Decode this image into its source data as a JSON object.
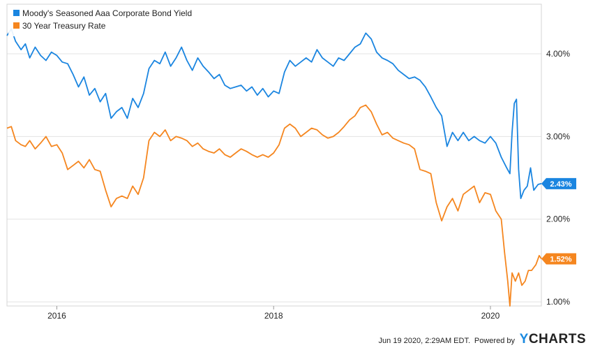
{
  "chart_data": {
    "type": "line",
    "ylim": [
      0.95,
      4.6
    ],
    "y_ticks": [
      1.0,
      2.0,
      3.0,
      4.0
    ],
    "y_tick_labels": [
      "1.00%",
      "2.00%",
      "3.00%",
      "4.00%"
    ],
    "x_range": [
      2015.54,
      2020.47
    ],
    "x_ticks": [
      2016,
      2018,
      2020
    ],
    "x_tick_labels": [
      "2016",
      "2018",
      "2020"
    ],
    "grid": "horizontal",
    "legend_position": "top-left",
    "series": [
      {
        "name": "Moody's Seasoned Aaa Corporate Bond Yield",
        "color": "#1a85e0",
        "last_label": "2.43%",
        "last_value": 2.43,
        "points": [
          [
            2015.54,
            4.22
          ],
          [
            2015.58,
            4.3
          ],
          [
            2015.62,
            4.15
          ],
          [
            2015.67,
            4.05
          ],
          [
            2015.71,
            4.12
          ],
          [
            2015.75,
            3.95
          ],
          [
            2015.8,
            4.08
          ],
          [
            2015.85,
            3.98
          ],
          [
            2015.9,
            3.92
          ],
          [
            2015.95,
            4.02
          ],
          [
            2016.0,
            3.98
          ],
          [
            2016.05,
            3.9
          ],
          [
            2016.1,
            3.88
          ],
          [
            2016.15,
            3.75
          ],
          [
            2016.2,
            3.6
          ],
          [
            2016.25,
            3.72
          ],
          [
            2016.3,
            3.5
          ],
          [
            2016.35,
            3.58
          ],
          [
            2016.4,
            3.42
          ],
          [
            2016.45,
            3.52
          ],
          [
            2016.5,
            3.22
          ],
          [
            2016.55,
            3.3
          ],
          [
            2016.6,
            3.35
          ],
          [
            2016.65,
            3.22
          ],
          [
            2016.7,
            3.46
          ],
          [
            2016.75,
            3.35
          ],
          [
            2016.8,
            3.52
          ],
          [
            2016.85,
            3.82
          ],
          [
            2016.9,
            3.92
          ],
          [
            2016.95,
            3.88
          ],
          [
            2017.0,
            4.02
          ],
          [
            2017.05,
            3.85
          ],
          [
            2017.1,
            3.95
          ],
          [
            2017.15,
            4.08
          ],
          [
            2017.2,
            3.92
          ],
          [
            2017.25,
            3.8
          ],
          [
            2017.3,
            3.95
          ],
          [
            2017.35,
            3.85
          ],
          [
            2017.4,
            3.78
          ],
          [
            2017.45,
            3.7
          ],
          [
            2017.5,
            3.75
          ],
          [
            2017.55,
            3.62
          ],
          [
            2017.6,
            3.58
          ],
          [
            2017.65,
            3.6
          ],
          [
            2017.7,
            3.62
          ],
          [
            2017.75,
            3.55
          ],
          [
            2017.8,
            3.6
          ],
          [
            2017.85,
            3.5
          ],
          [
            2017.9,
            3.58
          ],
          [
            2017.95,
            3.48
          ],
          [
            2018.0,
            3.55
          ],
          [
            2018.05,
            3.52
          ],
          [
            2018.1,
            3.78
          ],
          [
            2018.15,
            3.92
          ],
          [
            2018.2,
            3.85
          ],
          [
            2018.25,
            3.9
          ],
          [
            2018.3,
            3.95
          ],
          [
            2018.35,
            3.9
          ],
          [
            2018.4,
            4.05
          ],
          [
            2018.45,
            3.95
          ],
          [
            2018.5,
            3.9
          ],
          [
            2018.55,
            3.85
          ],
          [
            2018.6,
            3.95
          ],
          [
            2018.65,
            3.92
          ],
          [
            2018.7,
            4.0
          ],
          [
            2018.75,
            4.08
          ],
          [
            2018.8,
            4.12
          ],
          [
            2018.85,
            4.25
          ],
          [
            2018.9,
            4.18
          ],
          [
            2018.95,
            4.02
          ],
          [
            2019.0,
            3.95
          ],
          [
            2019.05,
            3.92
          ],
          [
            2019.1,
            3.88
          ],
          [
            2019.15,
            3.8
          ],
          [
            2019.2,
            3.75
          ],
          [
            2019.25,
            3.7
          ],
          [
            2019.3,
            3.72
          ],
          [
            2019.35,
            3.68
          ],
          [
            2019.4,
            3.6
          ],
          [
            2019.45,
            3.48
          ],
          [
            2019.5,
            3.35
          ],
          [
            2019.55,
            3.25
          ],
          [
            2019.6,
            2.88
          ],
          [
            2019.65,
            3.05
          ],
          [
            2019.7,
            2.95
          ],
          [
            2019.75,
            3.05
          ],
          [
            2019.8,
            2.95
          ],
          [
            2019.85,
            3.0
          ],
          [
            2019.9,
            2.95
          ],
          [
            2019.95,
            2.92
          ],
          [
            2020.0,
            3.0
          ],
          [
            2020.05,
            2.92
          ],
          [
            2020.1,
            2.75
          ],
          [
            2020.15,
            2.62
          ],
          [
            2020.18,
            2.55
          ],
          [
            2020.2,
            3.05
          ],
          [
            2020.22,
            3.4
          ],
          [
            2020.24,
            3.45
          ],
          [
            2020.26,
            2.6
          ],
          [
            2020.28,
            2.25
          ],
          [
            2020.31,
            2.35
          ],
          [
            2020.34,
            2.4
          ],
          [
            2020.37,
            2.62
          ],
          [
            2020.4,
            2.35
          ],
          [
            2020.44,
            2.42
          ],
          [
            2020.47,
            2.43
          ]
        ]
      },
      {
        "name": "30 Year Treasury Rate",
        "color": "#f5861f",
        "last_label": "1.52%",
        "last_value": 1.52,
        "points": [
          [
            2015.54,
            3.1
          ],
          [
            2015.58,
            3.12
          ],
          [
            2015.62,
            2.95
          ],
          [
            2015.67,
            2.9
          ],
          [
            2015.71,
            2.88
          ],
          [
            2015.75,
            2.95
          ],
          [
            2015.8,
            2.85
          ],
          [
            2015.85,
            2.92
          ],
          [
            2015.9,
            3.0
          ],
          [
            2015.95,
            2.88
          ],
          [
            2016.0,
            2.9
          ],
          [
            2016.05,
            2.8
          ],
          [
            2016.1,
            2.6
          ],
          [
            2016.15,
            2.65
          ],
          [
            2016.2,
            2.7
          ],
          [
            2016.25,
            2.62
          ],
          [
            2016.3,
            2.72
          ],
          [
            2016.35,
            2.6
          ],
          [
            2016.4,
            2.58
          ],
          [
            2016.45,
            2.35
          ],
          [
            2016.5,
            2.15
          ],
          [
            2016.55,
            2.25
          ],
          [
            2016.6,
            2.28
          ],
          [
            2016.65,
            2.25
          ],
          [
            2016.7,
            2.4
          ],
          [
            2016.75,
            2.3
          ],
          [
            2016.8,
            2.5
          ],
          [
            2016.85,
            2.95
          ],
          [
            2016.9,
            3.05
          ],
          [
            2016.95,
            3.0
          ],
          [
            2017.0,
            3.08
          ],
          [
            2017.05,
            2.95
          ],
          [
            2017.1,
            3.0
          ],
          [
            2017.15,
            2.98
          ],
          [
            2017.2,
            2.95
          ],
          [
            2017.25,
            2.88
          ],
          [
            2017.3,
            2.92
          ],
          [
            2017.35,
            2.85
          ],
          [
            2017.4,
            2.82
          ],
          [
            2017.45,
            2.8
          ],
          [
            2017.5,
            2.85
          ],
          [
            2017.55,
            2.78
          ],
          [
            2017.6,
            2.75
          ],
          [
            2017.65,
            2.8
          ],
          [
            2017.7,
            2.85
          ],
          [
            2017.75,
            2.82
          ],
          [
            2017.8,
            2.78
          ],
          [
            2017.85,
            2.75
          ],
          [
            2017.9,
            2.78
          ],
          [
            2017.95,
            2.75
          ],
          [
            2018.0,
            2.8
          ],
          [
            2018.05,
            2.9
          ],
          [
            2018.1,
            3.1
          ],
          [
            2018.15,
            3.15
          ],
          [
            2018.2,
            3.1
          ],
          [
            2018.25,
            3.0
          ],
          [
            2018.3,
            3.05
          ],
          [
            2018.35,
            3.1
          ],
          [
            2018.4,
            3.08
          ],
          [
            2018.45,
            3.02
          ],
          [
            2018.5,
            2.98
          ],
          [
            2018.55,
            3.0
          ],
          [
            2018.6,
            3.05
          ],
          [
            2018.65,
            3.12
          ],
          [
            2018.7,
            3.2
          ],
          [
            2018.75,
            3.25
          ],
          [
            2018.8,
            3.35
          ],
          [
            2018.85,
            3.38
          ],
          [
            2018.9,
            3.3
          ],
          [
            2018.95,
            3.15
          ],
          [
            2019.0,
            3.02
          ],
          [
            2019.05,
            3.05
          ],
          [
            2019.1,
            2.98
          ],
          [
            2019.15,
            2.95
          ],
          [
            2019.2,
            2.92
          ],
          [
            2019.25,
            2.9
          ],
          [
            2019.3,
            2.85
          ],
          [
            2019.35,
            2.6
          ],
          [
            2019.4,
            2.58
          ],
          [
            2019.45,
            2.55
          ],
          [
            2019.5,
            2.2
          ],
          [
            2019.55,
            1.98
          ],
          [
            2019.6,
            2.15
          ],
          [
            2019.65,
            2.25
          ],
          [
            2019.7,
            2.1
          ],
          [
            2019.75,
            2.3
          ],
          [
            2019.8,
            2.35
          ],
          [
            2019.85,
            2.4
          ],
          [
            2019.9,
            2.2
          ],
          [
            2019.95,
            2.32
          ],
          [
            2020.0,
            2.3
          ],
          [
            2020.05,
            2.1
          ],
          [
            2020.1,
            2.0
          ],
          [
            2020.13,
            1.6
          ],
          [
            2020.16,
            1.25
          ],
          [
            2020.18,
            0.95
          ],
          [
            2020.2,
            1.35
          ],
          [
            2020.23,
            1.25
          ],
          [
            2020.26,
            1.35
          ],
          [
            2020.29,
            1.2
          ],
          [
            2020.32,
            1.25
          ],
          [
            2020.35,
            1.38
          ],
          [
            2020.38,
            1.38
          ],
          [
            2020.42,
            1.45
          ],
          [
            2020.45,
            1.56
          ],
          [
            2020.47,
            1.52
          ]
        ]
      }
    ]
  },
  "footer": {
    "timestamp": "Jun 19 2020, 2:29AM EDT.",
    "powered_by": "Powered by",
    "brand_prefix": "Y",
    "brand_rest": "CHARTS"
  }
}
